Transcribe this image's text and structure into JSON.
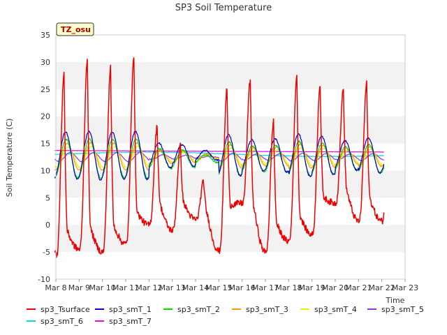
{
  "chart_data": {
    "type": "line",
    "title": "SP3 Soil Temperature",
    "xlabel": "Time",
    "ylabel": "Soil Temperature (C)",
    "ylim": [
      -10,
      35
    ],
    "yticks": [
      -10,
      -5,
      0,
      5,
      10,
      15,
      20,
      25,
      30,
      35
    ],
    "xlim": [
      0,
      15
    ],
    "xticks": [
      0,
      1,
      2,
      3,
      4,
      5,
      6,
      7,
      8,
      9,
      10,
      11,
      12,
      13,
      14,
      15
    ],
    "xtick_labels": [
      "Mar 8",
      "Mar 9",
      "Mar 10",
      "Mar 11",
      "Mar 12",
      "Mar 13",
      "Mar 14",
      "Mar 15",
      "Mar 16",
      "Mar 17",
      "Mar 18",
      "Mar 19",
      "Mar 20",
      "Mar 21",
      "Mar 22",
      "Mar 23"
    ],
    "grid": "horizontal bands",
    "badge": "TZ_osu",
    "daily_peaks": [
      28,
      30.5,
      29,
      31.3,
      18,
      14.5,
      8,
      25,
      26.5,
      19,
      27.5,
      26,
      25,
      26
    ],
    "daily_minima": [
      -6,
      -4.5,
      -5,
      -3.5,
      0,
      -1,
      1,
      -4.8,
      4,
      -5,
      -3,
      -1.8,
      4,
      0.7
    ],
    "series": [
      {
        "name": "sp3_Tsurface",
        "color": "#ee0000",
        "width": 1.5
      },
      {
        "name": "sp3_smT_1",
        "color": "#0000cc",
        "width": 1.2
      },
      {
        "name": "sp3_smT_2",
        "color": "#00dd00",
        "width": 1.2
      },
      {
        "name": "sp3_smT_3",
        "color": "#ff9900",
        "width": 1.2
      },
      {
        "name": "sp3_smT_4",
        "color": "#eeee00",
        "width": 1.2
      },
      {
        "name": "sp3_smT_5",
        "color": "#9933dd",
        "width": 1.2
      },
      {
        "name": "sp3_smT_6",
        "color": "#00dddd",
        "width": 1.2
      },
      {
        "name": "sp3_smT_7",
        "color": "#ee00ee",
        "width": 1.2
      }
    ]
  }
}
